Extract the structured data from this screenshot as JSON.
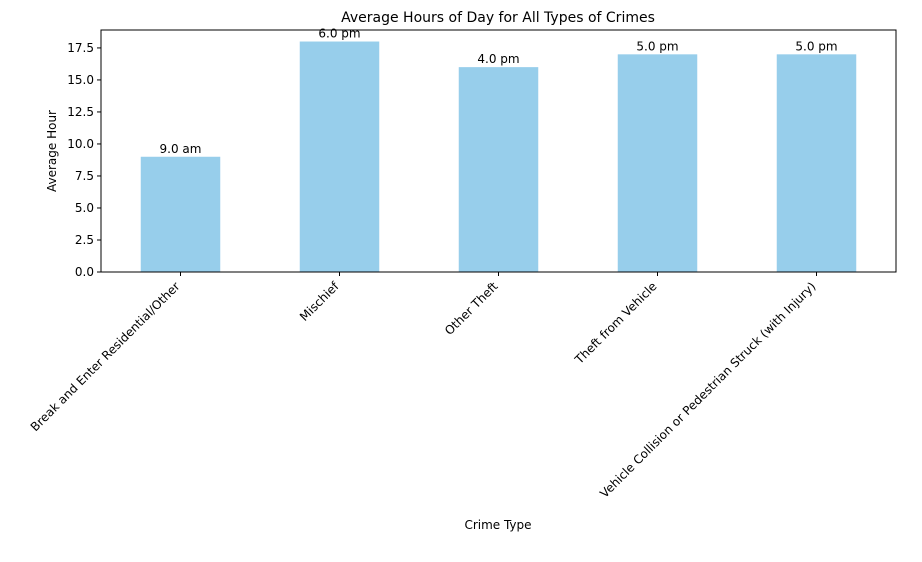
{
  "chart_data": {
    "type": "bar",
    "title": "Average Hours of Day for All Types of Crimes",
    "xlabel": "Crime Type",
    "ylabel": "Average Hour",
    "categories": [
      "Break and Enter Residential/Other",
      "Mischief",
      "Other Theft",
      "Theft from Vehicle",
      "Vehicle Collision or Pedestrian Struck (with Injury)"
    ],
    "values": [
      9,
      18,
      16,
      17,
      17
    ],
    "data_labels": [
      "9.0 am",
      "6.0 pm",
      "4.0 pm",
      "5.0 pm",
      "5.0 pm"
    ],
    "ylim": [
      0,
      18.9
    ],
    "yticks": [
      0.0,
      2.5,
      5.0,
      7.5,
      10.0,
      12.5,
      15.0,
      17.5
    ],
    "ytick_labels": [
      "0.0",
      "2.5",
      "5.0",
      "7.5",
      "10.0",
      "12.5",
      "15.0",
      "17.5"
    ],
    "grid": false,
    "bar_color": "#97CEEB"
  }
}
